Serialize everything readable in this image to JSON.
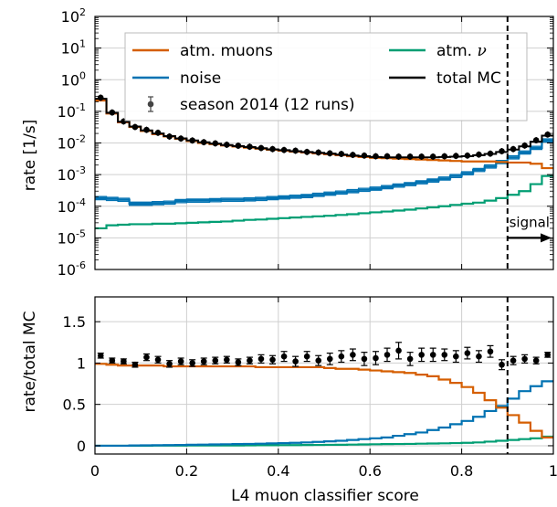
{
  "chart_data": [
    {
      "type": "line",
      "panel": "top",
      "ylabel": "rate [1/s]",
      "y_scale": "log",
      "ylim": [
        1e-06,
        100
      ],
      "yticks": [
        {
          "exp": "-6",
          "v": 1e-06
        },
        {
          "exp": "-5",
          "v": 1e-05
        },
        {
          "exp": "-4",
          "v": 0.0001
        },
        {
          "exp": "-3",
          "v": 0.001
        },
        {
          "exp": "-2",
          "v": 0.01
        },
        {
          "exp": "-1",
          "v": 0.1
        },
        {
          "exp": "0",
          "v": 1
        },
        {
          "exp": "1",
          "v": 10
        },
        {
          "exp": "2",
          "v": 100
        }
      ],
      "tick_base": "10",
      "xlim": [
        0,
        1
      ],
      "grid": true,
      "legend": "top",
      "bin_edges": [
        0,
        0.025,
        0.05,
        0.075,
        0.1,
        0.125,
        0.15,
        0.175,
        0.2,
        0.225,
        0.25,
        0.275,
        0.3,
        0.325,
        0.35,
        0.375,
        0.4,
        0.425,
        0.45,
        0.475,
        0.5,
        0.525,
        0.55,
        0.575,
        0.6,
        0.625,
        0.65,
        0.675,
        0.7,
        0.725,
        0.75,
        0.775,
        0.8,
        0.825,
        0.85,
        0.875,
        0.9,
        0.925,
        0.95,
        0.975,
        1.0
      ],
      "series": [
        {
          "name": "atm. muons",
          "style": "step",
          "color": "#d55e00",
          "values": [
            0.22,
            0.085,
            0.045,
            0.032,
            0.024,
            0.019,
            0.016,
            0.0135,
            0.0115,
            0.01,
            0.0092,
            0.0083,
            0.0077,
            0.0071,
            0.0066,
            0.0061,
            0.0057,
            0.0053,
            0.005,
            0.0047,
            0.0044,
            0.0041,
            0.0038,
            0.0036,
            0.0034,
            0.0033,
            0.0032,
            0.0031,
            0.003,
            0.0029,
            0.0028,
            0.0027,
            0.0026,
            0.0026,
            0.0026,
            0.0025,
            0.0024,
            0.0024,
            0.0022,
            0.0016
          ]
        },
        {
          "name": "noise",
          "style": "step-band",
          "color": "#0072b2",
          "values": [
            0.00018,
            0.00017,
            0.00016,
            0.00012,
            0.00012,
            0.000125,
            0.00013,
            0.000145,
            0.00015,
            0.00015,
            0.000155,
            0.00016,
            0.00016,
            0.000165,
            0.00017,
            0.00018,
            0.00019,
            0.0002,
            0.00021,
            0.00023,
            0.00025,
            0.00027,
            0.0003,
            0.00033,
            0.00036,
            0.0004,
            0.00045,
            0.0005,
            0.00057,
            0.00065,
            0.00075,
            0.0009,
            0.0011,
            0.0014,
            0.0018,
            0.0025,
            0.0035,
            0.005,
            0.007,
            0.012
          ]
        },
        {
          "name": "atm. ν",
          "legend_main": "atm. ",
          "legend_symbol": "ν",
          "style": "step",
          "color": "#009e73",
          "values": [
            2e-05,
            2.5e-05,
            2.6e-05,
            2.7e-05,
            2.7e-05,
            2.8e-05,
            2.8e-05,
            2.9e-05,
            3e-05,
            3.1e-05,
            3.2e-05,
            3.3e-05,
            3.5e-05,
            3.7e-05,
            3.8e-05,
            4e-05,
            4.2e-05,
            4.4e-05,
            4.6e-05,
            4.8e-05,
            5e-05,
            5.3e-05,
            5.6e-05,
            6e-05,
            6.4e-05,
            6.8e-05,
            7.3e-05,
            7.8e-05,
            8.5e-05,
            9.2e-05,
            0.0001,
            0.00011,
            0.00012,
            0.00013,
            0.00015,
            0.00018,
            0.00023,
            0.0003,
            0.0005,
            0.0009
          ]
        },
        {
          "name": "total MC",
          "style": "step",
          "color": "#000000",
          "values": [
            0.25,
            0.09,
            0.047,
            0.033,
            0.025,
            0.02,
            0.0165,
            0.014,
            0.012,
            0.0105,
            0.0095,
            0.0086,
            0.008,
            0.0074,
            0.0068,
            0.0063,
            0.0059,
            0.0055,
            0.0052,
            0.0049,
            0.0046,
            0.0043,
            0.004,
            0.0038,
            0.0036,
            0.0035,
            0.0035,
            0.0035,
            0.0035,
            0.0035,
            0.0036,
            0.0037,
            0.0038,
            0.0041,
            0.0045,
            0.0052,
            0.0062,
            0.0078,
            0.011,
            0.017
          ]
        },
        {
          "name": "season 2014 (12 runs)",
          "style": "errorbar",
          "color": "#000000",
          "x": [
            0.0125,
            0.0375,
            0.0625,
            0.0875,
            0.1125,
            0.1375,
            0.1625,
            0.1875,
            0.2125,
            0.2375,
            0.2625,
            0.2875,
            0.3125,
            0.3375,
            0.3625,
            0.3875,
            0.4125,
            0.4375,
            0.4625,
            0.4875,
            0.5125,
            0.5375,
            0.5625,
            0.5875,
            0.6125,
            0.6375,
            0.6625,
            0.6875,
            0.7125,
            0.7375,
            0.7625,
            0.7875,
            0.8125,
            0.8375,
            0.8625,
            0.8875,
            0.9125,
            0.9375,
            0.9625,
            0.9875
          ],
          "y": [
            0.27,
            0.092,
            0.048,
            0.032,
            0.026,
            0.021,
            0.016,
            0.0138,
            0.012,
            0.0106,
            0.0097,
            0.0088,
            0.0082,
            0.0076,
            0.0069,
            0.0064,
            0.006,
            0.0057,
            0.0052,
            0.005,
            0.0047,
            0.0045,
            0.0042,
            0.004,
            0.0038,
            0.0038,
            0.0037,
            0.0037,
            0.0037,
            0.0037,
            0.0038,
            0.0039,
            0.004,
            0.0043,
            0.0046,
            0.0055,
            0.0064,
            0.0083,
            0.0122,
            0.0185
          ]
        }
      ],
      "annotation": {
        "text": "signal",
        "x": 0.9
      }
    },
    {
      "type": "line",
      "panel": "bottom",
      "xlabel": "L4 muon classifier score",
      "ylabel": "rate/total MC",
      "ylim": [
        -0.1,
        1.8
      ],
      "yticks": [
        "0",
        "0.5",
        "1",
        "1.5"
      ],
      "xlim": [
        0,
        1
      ],
      "xticks": [
        "0",
        "0.2",
        "0.4",
        "0.6",
        "0.8",
        "1"
      ],
      "grid": true,
      "series": [
        {
          "name": "atm. muons",
          "style": "step",
          "color": "#d55e00",
          "values": [
            0.99,
            0.98,
            0.97,
            0.97,
            0.97,
            0.97,
            0.96,
            0.96,
            0.96,
            0.96,
            0.96,
            0.96,
            0.96,
            0.96,
            0.95,
            0.95,
            0.95,
            0.95,
            0.95,
            0.95,
            0.94,
            0.93,
            0.93,
            0.92,
            0.91,
            0.9,
            0.89,
            0.88,
            0.86,
            0.84,
            0.8,
            0.76,
            0.71,
            0.64,
            0.55,
            0.46,
            0.37,
            0.28,
            0.18,
            0.1
          ]
        },
        {
          "name": "noise",
          "style": "step",
          "color": "#0072b2",
          "values": [
            0.0,
            0.0,
            0.0,
            0.004,
            0.005,
            0.006,
            0.008,
            0.01,
            0.012,
            0.014,
            0.016,
            0.018,
            0.02,
            0.022,
            0.025,
            0.028,
            0.031,
            0.035,
            0.04,
            0.046,
            0.053,
            0.06,
            0.07,
            0.08,
            0.09,
            0.1,
            0.12,
            0.14,
            0.16,
            0.19,
            0.22,
            0.26,
            0.3,
            0.35,
            0.42,
            0.48,
            0.57,
            0.66,
            0.72,
            0.78
          ]
        },
        {
          "name": "atm. ν",
          "style": "step",
          "color": "#009e73",
          "values": [
            0.0,
            0.0,
            0.0,
            0.0,
            0.0,
            0.002,
            0.002,
            0.002,
            0.003,
            0.003,
            0.003,
            0.004,
            0.004,
            0.005,
            0.006,
            0.006,
            0.007,
            0.008,
            0.009,
            0.01,
            0.011,
            0.012,
            0.014,
            0.016,
            0.018,
            0.02,
            0.021,
            0.022,
            0.025,
            0.027,
            0.029,
            0.032,
            0.035,
            0.04,
            0.05,
            0.06,
            0.07,
            0.08,
            0.09,
            0.11
          ]
        },
        {
          "name": "season 2014 (12 runs)",
          "style": "errorbar",
          "color": "#000000",
          "x": [
            0.0125,
            0.0375,
            0.0625,
            0.0875,
            0.1125,
            0.1375,
            0.1625,
            0.1875,
            0.2125,
            0.2375,
            0.2625,
            0.2875,
            0.3125,
            0.3375,
            0.3625,
            0.3875,
            0.4125,
            0.4375,
            0.4625,
            0.4875,
            0.5125,
            0.5375,
            0.5625,
            0.5875,
            0.6125,
            0.6375,
            0.6625,
            0.6875,
            0.7125,
            0.7375,
            0.7625,
            0.7875,
            0.8125,
            0.8375,
            0.8625,
            0.8875,
            0.9125,
            0.9375,
            0.9625,
            0.9875
          ],
          "y": [
            1.09,
            1.03,
            1.02,
            0.98,
            1.07,
            1.04,
            0.99,
            1.02,
            1.0,
            1.02,
            1.03,
            1.04,
            1.01,
            1.03,
            1.05,
            1.04,
            1.08,
            1.02,
            1.08,
            1.03,
            1.05,
            1.08,
            1.1,
            1.05,
            1.06,
            1.1,
            1.15,
            1.05,
            1.1,
            1.1,
            1.1,
            1.08,
            1.12,
            1.08,
            1.14,
            0.98,
            1.03,
            1.05,
            1.03,
            1.1
          ],
          "err": [
            0.03,
            0.03,
            0.03,
            0.03,
            0.04,
            0.04,
            0.04,
            0.04,
            0.04,
            0.04,
            0.04,
            0.04,
            0.04,
            0.04,
            0.05,
            0.05,
            0.06,
            0.06,
            0.06,
            0.06,
            0.07,
            0.07,
            0.07,
            0.08,
            0.08,
            0.08,
            0.1,
            0.08,
            0.08,
            0.08,
            0.07,
            0.07,
            0.07,
            0.07,
            0.07,
            0.06,
            0.05,
            0.05,
            0.04,
            0.03
          ]
        }
      ]
    }
  ]
}
